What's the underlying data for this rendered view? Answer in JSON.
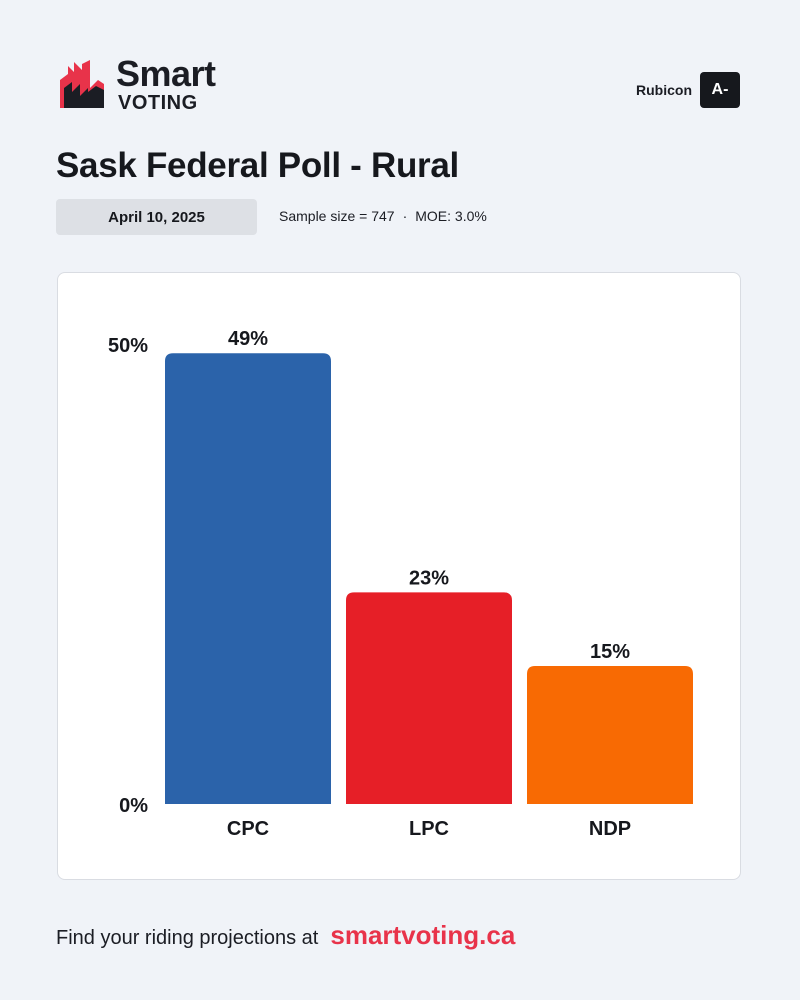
{
  "brand": {
    "name_line1": "Smart",
    "name_line2": "VOTING",
    "accent_color": "#e8334a"
  },
  "pollster": {
    "name": "Rubicon",
    "grade": "A-"
  },
  "title": "Sask Federal Poll - Rural",
  "date": "April 10, 2025",
  "meta": {
    "sample_size": "Sample size = 747",
    "separator": "·",
    "moe": "MOE: 3.0%"
  },
  "chart_data": {
    "type": "bar",
    "title": "",
    "xlabel": "",
    "ylabel": "",
    "ylim": [
      0,
      50
    ],
    "yticks": [
      "0%",
      "50%"
    ],
    "categories": [
      "CPC",
      "LPC",
      "NDP"
    ],
    "values": [
      49,
      23,
      15
    ],
    "value_labels": [
      "49%",
      "23%",
      "15%"
    ],
    "colors": [
      "#2b63aa",
      "#e61f27",
      "#f86a03"
    ],
    "grid": false,
    "legend": "none"
  },
  "footer": {
    "text": "Find your riding projections at",
    "link": "smartvoting.ca"
  }
}
